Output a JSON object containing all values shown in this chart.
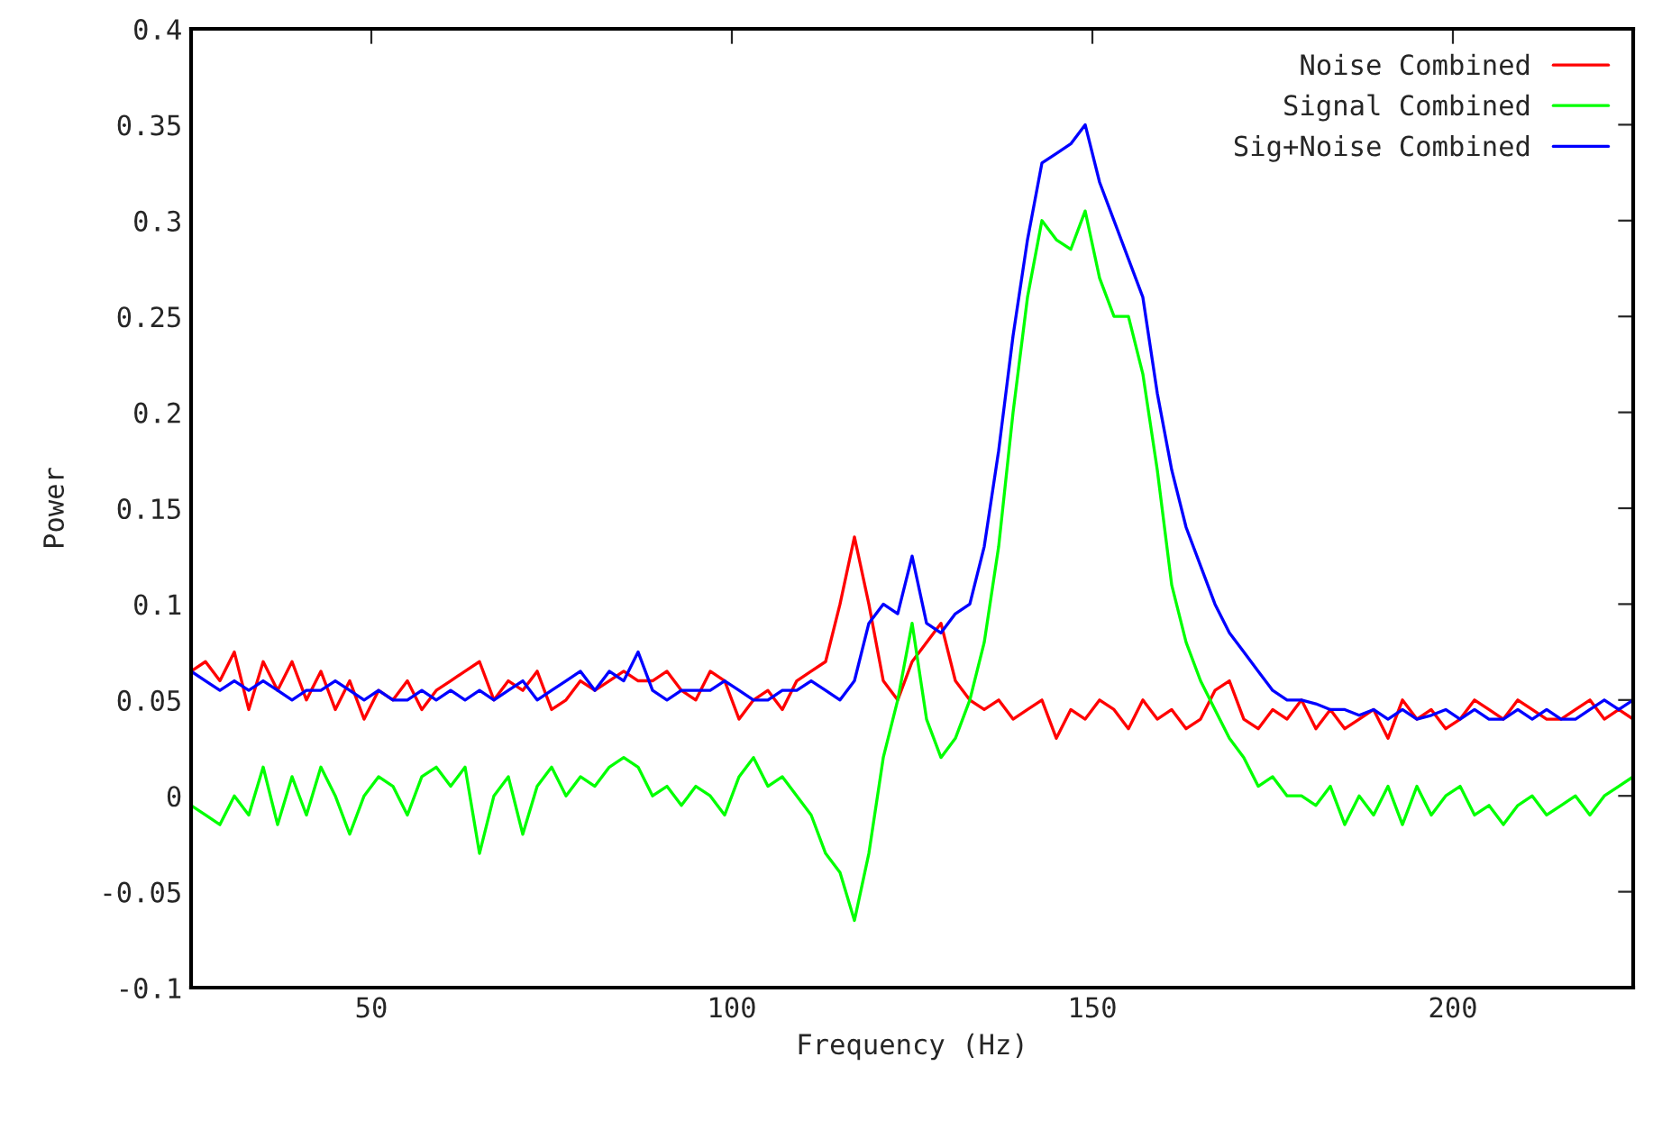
{
  "chart_data": {
    "type": "line",
    "xlabel": "Frequency (Hz)",
    "ylabel": "Power",
    "x": [
      25,
      27,
      29,
      31,
      33,
      35,
      37,
      39,
      41,
      43,
      45,
      47,
      49,
      51,
      53,
      55,
      57,
      59,
      61,
      63,
      65,
      67,
      69,
      71,
      73,
      75,
      77,
      79,
      81,
      83,
      85,
      87,
      89,
      91,
      93,
      95,
      97,
      99,
      101,
      103,
      105,
      107,
      109,
      111,
      113,
      115,
      117,
      119,
      121,
      123,
      125,
      127,
      129,
      131,
      133,
      135,
      137,
      139,
      141,
      143,
      145,
      147,
      149,
      151,
      153,
      155,
      157,
      159,
      161,
      163,
      165,
      167,
      169,
      171,
      173,
      175,
      177,
      179,
      181,
      183,
      185,
      187,
      189,
      191,
      193,
      195,
      197,
      199,
      201,
      203,
      205,
      207,
      209,
      211,
      213,
      215,
      217,
      219,
      221,
      223,
      225
    ],
    "series": [
      {
        "name": "Noise Combined",
        "color": "#ff0000",
        "values": [
          0.065,
          0.07,
          0.06,
          0.075,
          0.045,
          0.07,
          0.055,
          0.07,
          0.05,
          0.065,
          0.045,
          0.06,
          0.04,
          0.055,
          0.05,
          0.06,
          0.045,
          0.055,
          0.06,
          0.065,
          0.07,
          0.05,
          0.06,
          0.055,
          0.065,
          0.045,
          0.05,
          0.06,
          0.055,
          0.06,
          0.065,
          0.06,
          0.06,
          0.065,
          0.055,
          0.05,
          0.065,
          0.06,
          0.04,
          0.05,
          0.055,
          0.045,
          0.06,
          0.065,
          0.07,
          0.1,
          0.135,
          0.1,
          0.06,
          0.05,
          0.07,
          0.08,
          0.09,
          0.06,
          0.05,
          0.045,
          0.05,
          0.04,
          0.045,
          0.05,
          0.03,
          0.045,
          0.04,
          0.05,
          0.045,
          0.035,
          0.05,
          0.04,
          0.045,
          0.035,
          0.04,
          0.055,
          0.06,
          0.04,
          0.035,
          0.045,
          0.04,
          0.05,
          0.035,
          0.045,
          0.035,
          0.04,
          0.045,
          0.03,
          0.05,
          0.04,
          0.045,
          0.035,
          0.04,
          0.05,
          0.045,
          0.04,
          0.05,
          0.045,
          0.04,
          0.04,
          0.045,
          0.05,
          0.04,
          0.045,
          0.04
        ]
      },
      {
        "name": "Signal Combined",
        "color": "#00ff00",
        "values": [
          -0.005,
          -0.01,
          -0.015,
          0.0,
          -0.01,
          0.015,
          -0.015,
          0.01,
          -0.01,
          0.015,
          0.0,
          -0.02,
          0.0,
          0.01,
          0.005,
          -0.01,
          0.01,
          0.015,
          0.005,
          0.015,
          -0.03,
          0.0,
          0.01,
          -0.02,
          0.005,
          0.015,
          0.0,
          0.01,
          0.005,
          0.015,
          0.02,
          0.015,
          0.0,
          0.005,
          -0.005,
          0.005,
          0.0,
          -0.01,
          0.01,
          0.02,
          0.005,
          0.01,
          0.0,
          -0.01,
          -0.03,
          -0.04,
          -0.065,
          -0.03,
          0.02,
          0.05,
          0.09,
          0.04,
          0.02,
          0.03,
          0.05,
          0.08,
          0.13,
          0.2,
          0.26,
          0.3,
          0.29,
          0.285,
          0.305,
          0.27,
          0.25,
          0.25,
          0.22,
          0.17,
          0.11,
          0.08,
          0.06,
          0.045,
          0.03,
          0.02,
          0.005,
          0.01,
          0.0,
          0.0,
          -0.005,
          0.005,
          -0.015,
          0.0,
          -0.01,
          0.005,
          -0.015,
          0.005,
          -0.01,
          0.0,
          0.005,
          -0.01,
          -0.005,
          -0.015,
          -0.005,
          0.0,
          -0.01,
          -0.005,
          0.0,
          -0.01,
          0.0,
          0.005,
          0.01
        ]
      },
      {
        "name": "Sig+Noise Combined",
        "color": "#0000ff",
        "values": [
          0.065,
          0.06,
          0.055,
          0.06,
          0.055,
          0.06,
          0.055,
          0.05,
          0.055,
          0.055,
          0.06,
          0.055,
          0.05,
          0.055,
          0.05,
          0.05,
          0.055,
          0.05,
          0.055,
          0.05,
          0.055,
          0.05,
          0.055,
          0.06,
          0.05,
          0.055,
          0.06,
          0.065,
          0.055,
          0.065,
          0.06,
          0.075,
          0.055,
          0.05,
          0.055,
          0.055,
          0.055,
          0.06,
          0.055,
          0.05,
          0.05,
          0.055,
          0.055,
          0.06,
          0.055,
          0.05,
          0.06,
          0.09,
          0.1,
          0.095,
          0.125,
          0.09,
          0.085,
          0.095,
          0.1,
          0.13,
          0.18,
          0.24,
          0.29,
          0.33,
          0.335,
          0.34,
          0.35,
          0.32,
          0.3,
          0.28,
          0.26,
          0.21,
          0.17,
          0.14,
          0.12,
          0.1,
          0.085,
          0.075,
          0.065,
          0.055,
          0.05,
          0.05,
          0.048,
          0.045,
          0.045,
          0.042,
          0.045,
          0.04,
          0.045,
          0.04,
          0.042,
          0.045,
          0.04,
          0.045,
          0.04,
          0.04,
          0.045,
          0.04,
          0.045,
          0.04,
          0.04,
          0.045,
          0.05,
          0.045,
          0.05
        ]
      }
    ],
    "xlim": [
      25,
      225
    ],
    "xticks": [
      50,
      100,
      150,
      200
    ],
    "ylim": [
      -0.1,
      0.4
    ],
    "yticks": [
      -0.1,
      -0.05,
      0,
      0.05,
      0.1,
      0.15,
      0.2,
      0.25,
      0.3,
      0.35,
      0.4
    ],
    "legend": "top right",
    "grid": false
  }
}
